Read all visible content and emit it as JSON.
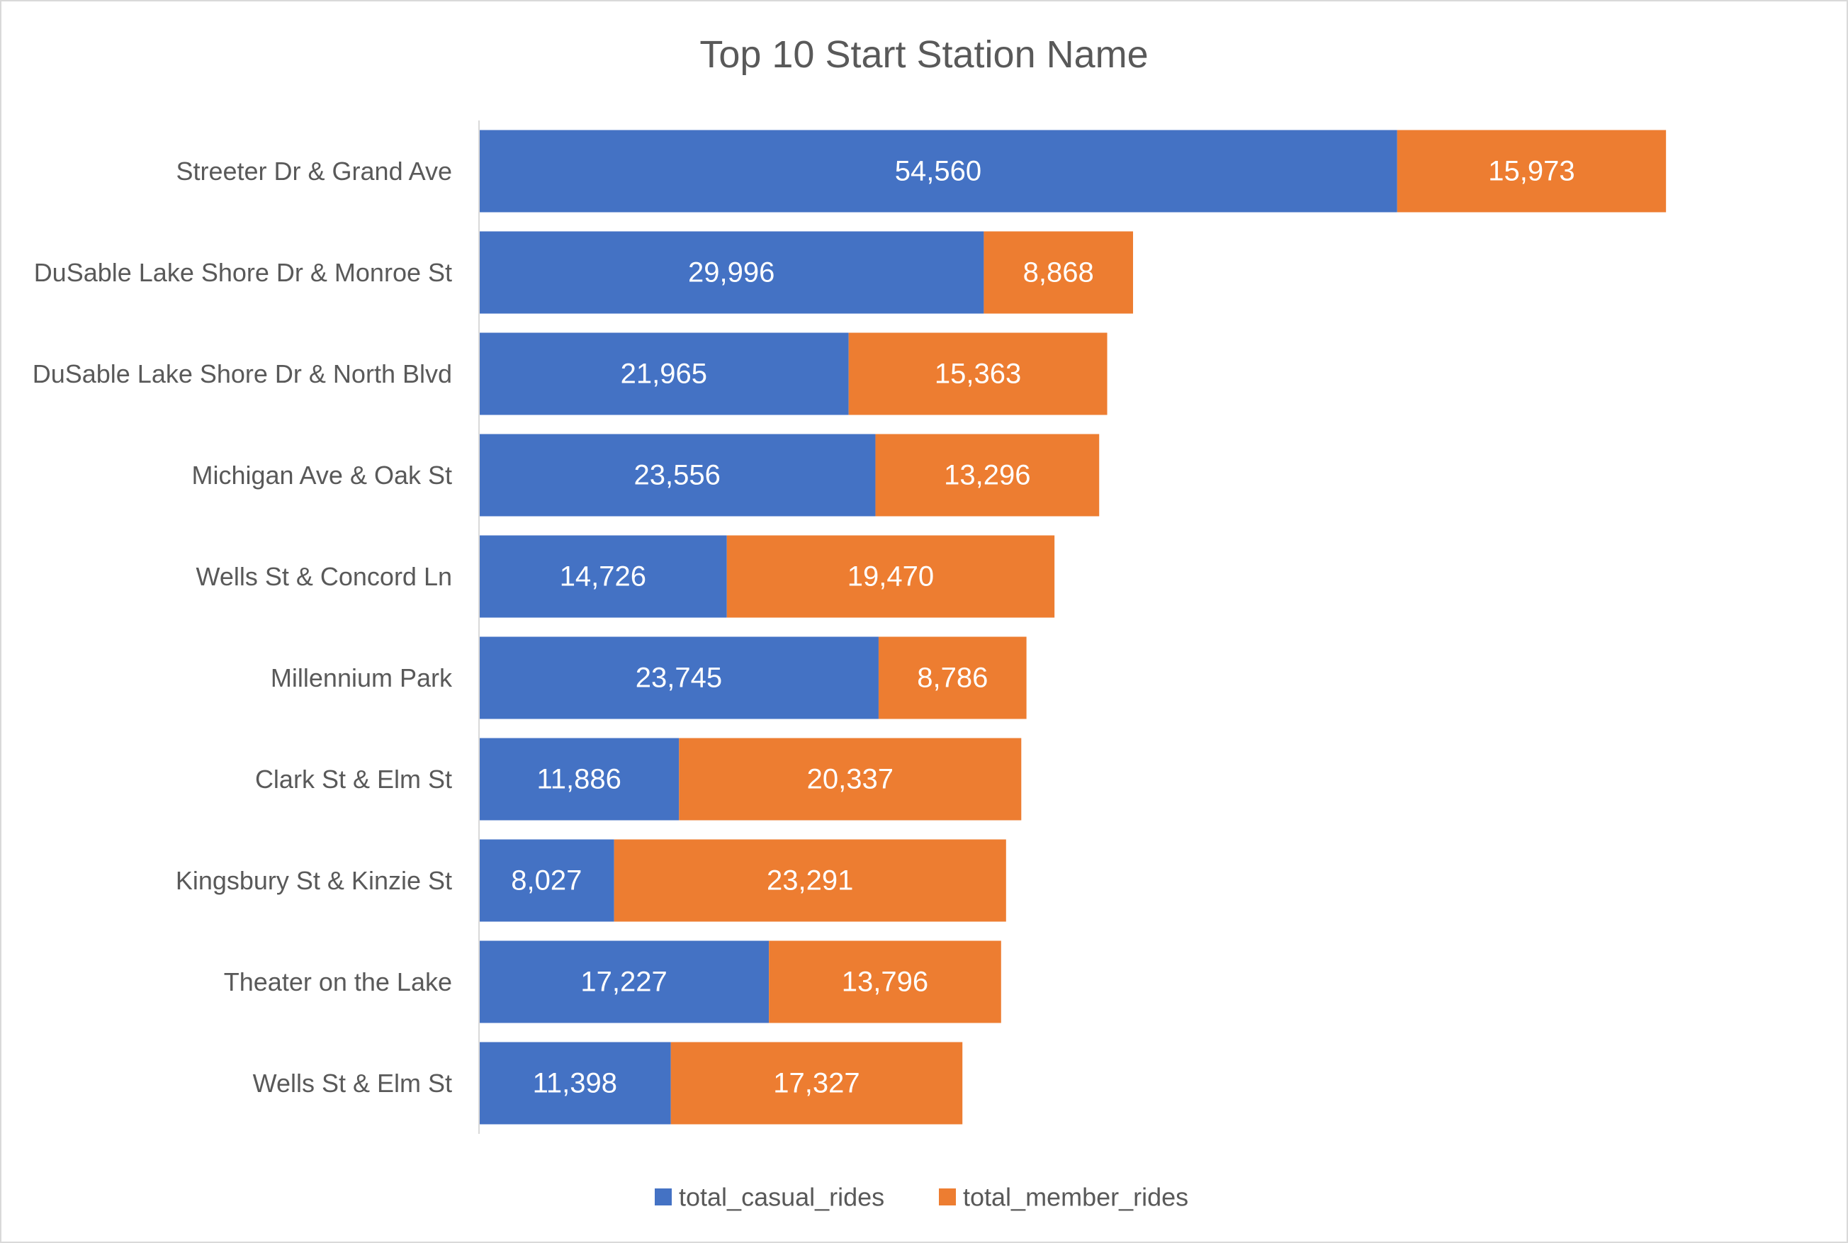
{
  "chart_data": {
    "type": "bar",
    "orientation": "horizontal",
    "stacked": true,
    "title": "Top 10 Start Station Name",
    "categories": [
      "Streeter Dr & Grand Ave",
      "DuSable Lake Shore Dr & Monroe St",
      "DuSable Lake Shore Dr & North Blvd",
      "Michigan Ave & Oak St",
      "Wells St & Concord Ln",
      "Millennium Park",
      "Clark St & Elm St",
      "Kingsbury St & Kinzie St",
      "Theater on the Lake",
      "Wells St & Elm St"
    ],
    "series": [
      {
        "name": "total_casual_rides",
        "color": "#4472c4",
        "values": [
          54560,
          29996,
          21965,
          23556,
          14726,
          23745,
          11886,
          8027,
          17227,
          11398
        ],
        "labels": [
          "54,560",
          "29,996",
          "21,965",
          "23,556",
          "14,726",
          "23,745",
          "11,886",
          "8,027",
          "17,227",
          "11,398"
        ]
      },
      {
        "name": "total_member_rides",
        "color": "#ed7d31",
        "values": [
          15973,
          8868,
          15363,
          13296,
          19470,
          8786,
          20337,
          23291,
          13796,
          17327
        ],
        "labels": [
          "15,973",
          "8,868",
          "15,363",
          "13,296",
          "19,470",
          "8,786",
          "20,337",
          "23,291",
          "13,796",
          "17,327"
        ]
      }
    ],
    "xlim": [
      0,
      72000
    ],
    "grid": false,
    "legend": "bottom"
  }
}
